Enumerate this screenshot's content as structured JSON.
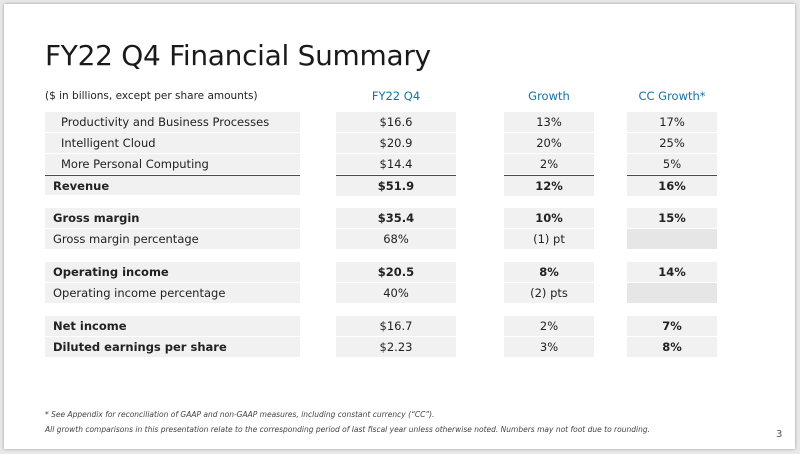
{
  "title": "FY22 Q4 Financial Summary",
  "units_note": "($ in billions, except per share amounts)",
  "columns": {
    "fy22q4": "FY22 Q4",
    "growth": "Growth",
    "cc_growth": "CC Growth*"
  },
  "rows": [
    {
      "label": "Productivity and Business Processes",
      "fy22q4": "$16.6",
      "growth": "13%",
      "cc_growth": "17%"
    },
    {
      "label": "Intelligent Cloud",
      "fy22q4": "$20.9",
      "growth": "20%",
      "cc_growth": "25%"
    },
    {
      "label": "More Personal Computing",
      "fy22q4": "$14.4",
      "growth": "2%",
      "cc_growth": "5%"
    },
    {
      "label": "Revenue",
      "fy22q4": "$51.9",
      "growth": "12%",
      "cc_growth": "16%"
    },
    {
      "label": "Gross margin",
      "fy22q4": "$35.4",
      "growth": "10%",
      "cc_growth": "15%"
    },
    {
      "label": "Gross margin percentage",
      "fy22q4": "68%",
      "growth": "(1) pt",
      "cc_growth": ""
    },
    {
      "label": "Operating income",
      "fy22q4": "$20.5",
      "growth": "8%",
      "cc_growth": "14%"
    },
    {
      "label": "Operating income percentage",
      "fy22q4": "40%",
      "growth": "(2) pts",
      "cc_growth": ""
    },
    {
      "label": "Net income",
      "fy22q4": "$16.7",
      "growth": "2%",
      "cc_growth": "7%"
    },
    {
      "label": "Diluted earnings per share",
      "fy22q4": "$2.23",
      "growth": "3%",
      "cc_growth": "8%"
    }
  ],
  "footnotes": [
    "* See Appendix for reconciliation of GAAP and non-GAAP measures, including constant currency (“CC”).",
    "All growth comparisons in this presentation relate to the corresponding period of last fiscal year unless otherwise noted. Numbers may not foot due to rounding."
  ],
  "page_number": "3"
}
